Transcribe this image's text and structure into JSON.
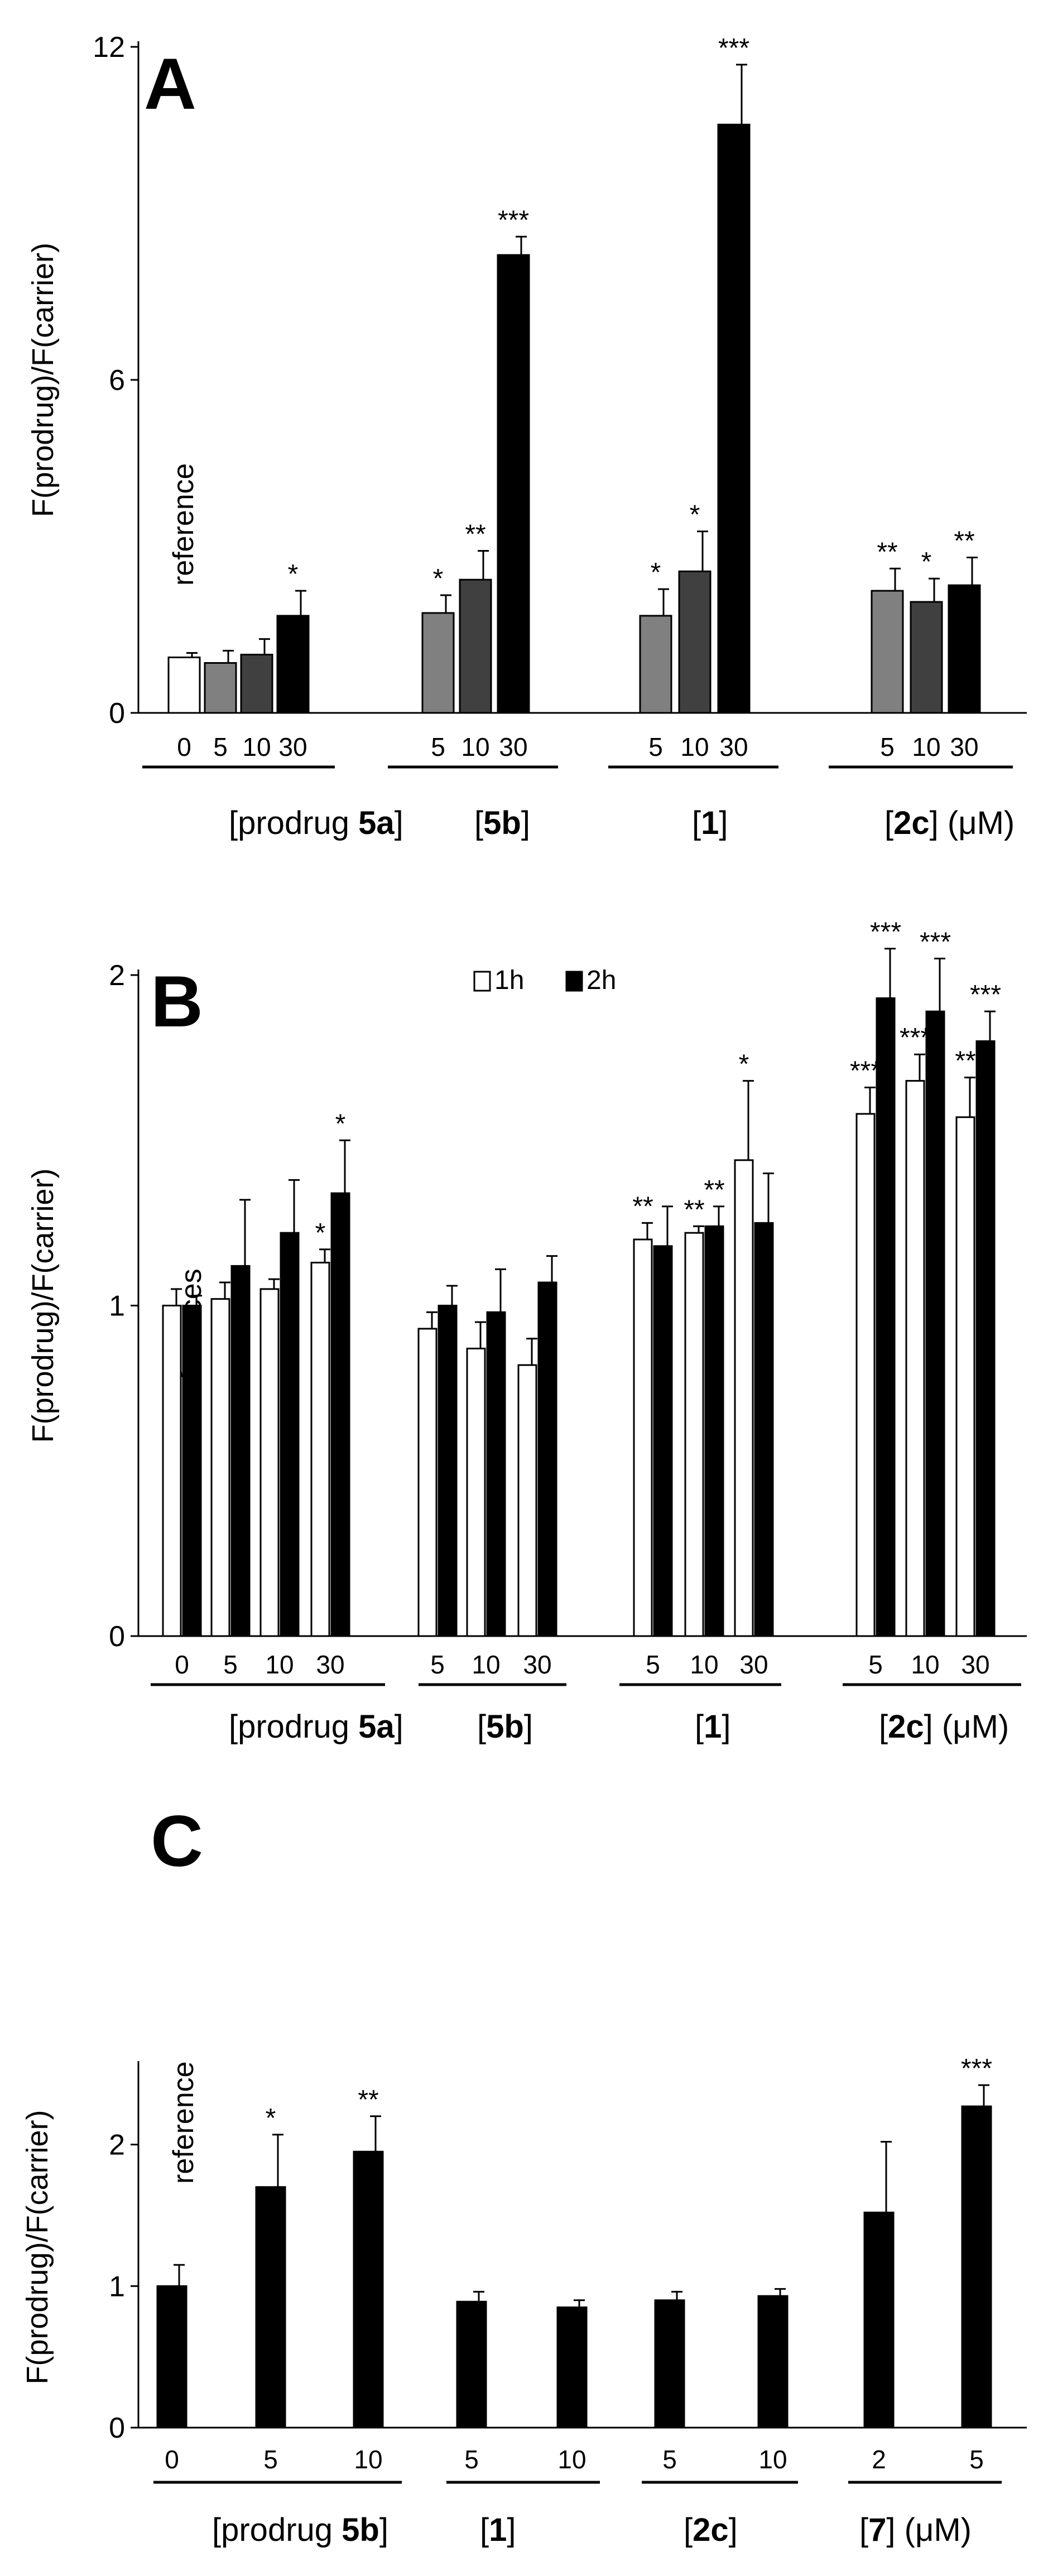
{
  "figure": {
    "charts": [
      {
        "panel_label": "A",
        "ylabel": "F(prodrug)/F(carrier)",
        "y_ticks": [
          "0",
          "6",
          "12"
        ],
        "ylim": [
          0,
          12
        ],
        "annotation": "reference",
        "groups": [
          {
            "label_pre": "[prodrug ",
            "label_bold": "5a",
            "label_post": "]",
            "unit": ""
          },
          {
            "label_pre": "[",
            "label_bold": "5b",
            "label_post": "]",
            "unit": ""
          },
          {
            "label_pre": "[",
            "label_bold": "1",
            "label_post": "]",
            "unit": ""
          },
          {
            "label_pre": "[",
            "label_bold": "2c",
            "label_post": "]",
            "unit": " (μM)"
          }
        ],
        "bars": [
          {
            "group": 0,
            "x_label": "0",
            "value": 1.0,
            "err": 0.08,
            "sig": "",
            "color": "#ffffff"
          },
          {
            "group": 0,
            "x_label": "5",
            "value": 0.9,
            "err": 0.22,
            "sig": "",
            "color": "#808080"
          },
          {
            "group": 0,
            "x_label": "10",
            "value": 1.05,
            "err": 0.28,
            "sig": "",
            "color": "#404040"
          },
          {
            "group": 0,
            "x_label": "30",
            "value": 1.75,
            "err": 0.45,
            "sig": "*",
            "color": "#000000"
          },
          {
            "group": 1,
            "x_label": "5",
            "value": 1.8,
            "err": 0.32,
            "sig": "*",
            "color": "#808080"
          },
          {
            "group": 1,
            "x_label": "10",
            "value": 2.4,
            "err": 0.52,
            "sig": "**",
            "color": "#404040"
          },
          {
            "group": 1,
            "x_label": "30",
            "value": 8.25,
            "err": 0.33,
            "sig": "***",
            "color": "#000000"
          },
          {
            "group": 2,
            "x_label": "5",
            "value": 1.75,
            "err": 0.48,
            "sig": "*",
            "color": "#808080"
          },
          {
            "group": 2,
            "x_label": "10",
            "value": 2.55,
            "err": 0.72,
            "sig": "*",
            "color": "#404040"
          },
          {
            "group": 2,
            "x_label": "30",
            "value": 10.6,
            "err": 1.08,
            "sig": "***",
            "color": "#000000"
          },
          {
            "group": 3,
            "x_label": "5",
            "value": 2.2,
            "err": 0.4,
            "sig": "**",
            "color": "#808080"
          },
          {
            "group": 3,
            "x_label": "10",
            "value": 2.0,
            "err": 0.42,
            "sig": "*",
            "color": "#404040"
          },
          {
            "group": 3,
            "x_label": "30",
            "value": 2.3,
            "err": 0.5,
            "sig": "**",
            "color": "#000000"
          }
        ]
      },
      {
        "panel_label": "B",
        "ylabel": "F(prodrug)/F(carrier)",
        "y_ticks": [
          "0",
          "1",
          "2"
        ],
        "ylim": [
          0,
          2
        ],
        "annotation": "references",
        "legend": [
          {
            "label": "1h",
            "color": "#ffffff"
          },
          {
            "label": "2h",
            "color": "#000000"
          }
        ],
        "groups": [
          {
            "label_pre": "[prodrug ",
            "label_bold": "5a",
            "label_post": "]",
            "unit": ""
          },
          {
            "label_pre": "[",
            "label_bold": "5b",
            "label_post": "]",
            "unit": ""
          },
          {
            "label_pre": "[",
            "label_bold": "1",
            "label_post": "]",
            "unit": ""
          },
          {
            "label_pre": "[",
            "label_bold": "2c",
            "label_post": "]",
            "unit": " (μM)"
          }
        ],
        "categories": [
          {
            "group": 0,
            "x_label": "0"
          },
          {
            "group": 0,
            "x_label": "5"
          },
          {
            "group": 0,
            "x_label": "10"
          },
          {
            "group": 0,
            "x_label": "30"
          },
          {
            "group": 1,
            "x_label": "5"
          },
          {
            "group": 1,
            "x_label": "10"
          },
          {
            "group": 1,
            "x_label": "30"
          },
          {
            "group": 2,
            "x_label": "5"
          },
          {
            "group": 2,
            "x_label": "10"
          },
          {
            "group": 2,
            "x_label": "30"
          },
          {
            "group": 3,
            "x_label": "5"
          },
          {
            "group": 3,
            "x_label": "10"
          },
          {
            "group": 3,
            "x_label": "30"
          }
        ],
        "series": [
          {
            "name": "1h",
            "color": "#ffffff",
            "values": [
              1.0,
              1.02,
              1.05,
              1.13,
              0.93,
              0.87,
              0.82,
              1.2,
              1.22,
              1.44,
              1.58,
              1.68,
              1.57
            ],
            "errs": [
              0.05,
              0.05,
              0.03,
              0.04,
              0.05,
              0.08,
              0.08,
              0.05,
              0.02,
              0.24,
              0.08,
              0.08,
              0.12
            ],
            "sig": [
              "",
              "",
              "",
              "*",
              "",
              "",
              "",
              "**",
              "**",
              "*",
              "***",
              "***",
              "**"
            ]
          },
          {
            "name": "2h",
            "color": "#000000",
            "values": [
              1.0,
              1.12,
              1.22,
              1.34,
              1.0,
              0.98,
              1.07,
              1.18,
              1.24,
              1.25,
              1.93,
              1.89,
              1.8
            ],
            "errs": [
              0.03,
              0.2,
              0.16,
              0.16,
              0.06,
              0.13,
              0.08,
              0.12,
              0.06,
              0.15,
              0.15,
              0.16,
              0.09
            ],
            "sig": [
              "",
              "",
              "",
              "*",
              "",
              "",
              "",
              "",
              "**",
              "",
              "***",
              "***",
              "***"
            ]
          }
        ]
      },
      {
        "panel_label": "C",
        "ylabel": "F(prodrug)/F(carrier)",
        "y_ticks": [
          "0",
          "1",
          "2"
        ],
        "ylim": [
          0,
          2.55
        ],
        "annotation": "reference",
        "groups": [
          {
            "label_pre": "[prodrug ",
            "label_bold": "5b",
            "label_post": "]",
            "unit": ""
          },
          {
            "label_pre": "[",
            "label_bold": "1",
            "label_post": "]",
            "unit": ""
          },
          {
            "label_pre": "[",
            "label_bold": "2c",
            "label_post": "]",
            "unit": ""
          },
          {
            "label_pre": "[",
            "label_bold": "7",
            "label_post": "]",
            "unit": " (μM)"
          }
        ],
        "bars": [
          {
            "group": 0,
            "x_label": "0",
            "value": 1.0,
            "err": 0.15,
            "sig": "",
            "color": "#000000"
          },
          {
            "group": 0,
            "x_label": "5",
            "value": 1.7,
            "err": 0.37,
            "sig": "*",
            "color": "#000000"
          },
          {
            "group": 0,
            "x_label": "10",
            "value": 1.95,
            "err": 0.25,
            "sig": "**",
            "color": "#000000"
          },
          {
            "group": 1,
            "x_label": "5",
            "value": 0.89,
            "err": 0.07,
            "sig": "",
            "color": "#000000"
          },
          {
            "group": 1,
            "x_label": "10",
            "value": 0.85,
            "err": 0.05,
            "sig": "",
            "color": "#000000"
          },
          {
            "group": 2,
            "x_label": "5",
            "value": 0.9,
            "err": 0.06,
            "sig": "",
            "color": "#000000"
          },
          {
            "group": 2,
            "x_label": "10",
            "value": 0.93,
            "err": 0.05,
            "sig": "",
            "color": "#000000"
          },
          {
            "group": 3,
            "x_label": "2",
            "value": 1.52,
            "err": 0.5,
            "sig": "",
            "color": "#000000"
          },
          {
            "group": 3,
            "x_label": "5",
            "value": 2.27,
            "err": 0.15,
            "sig": "***",
            "color": "#000000"
          }
        ]
      }
    ]
  },
  "chart_data": [
    {
      "type": "bar",
      "panel": "A",
      "title": "A",
      "xlabel": "[prodrug 5a] [5b] [1] [2c] (μM)",
      "ylabel": "F(prodrug)/F(carrier)",
      "ylim": [
        0,
        12
      ],
      "categories": [
        "5a 0",
        "5a 5",
        "5a 10",
        "5a 30",
        "5b 5",
        "5b 10",
        "5b 30",
        "1 5",
        "1 10",
        "1 30",
        "2c 5",
        "2c 10",
        "2c 30"
      ],
      "values": [
        1.0,
        0.9,
        1.05,
        1.75,
        1.8,
        2.4,
        8.25,
        1.75,
        2.55,
        10.6,
        2.2,
        2.0,
        2.3
      ],
      "errors": [
        0.08,
        0.22,
        0.28,
        0.45,
        0.32,
        0.52,
        0.33,
        0.48,
        0.72,
        1.08,
        0.4,
        0.42,
        0.5
      ],
      "significance": [
        "",
        "",
        "",
        "*",
        "*",
        "**",
        "***",
        "*",
        "*",
        "***",
        "**",
        "*",
        "**"
      ],
      "annotations": [
        "reference"
      ]
    },
    {
      "type": "bar",
      "panel": "B",
      "title": "B",
      "xlabel": "[prodrug 5a] [5b] [1] [2c] (μM)",
      "ylabel": "F(prodrug)/F(carrier)",
      "ylim": [
        0,
        2
      ],
      "legend": [
        "1h",
        "2h"
      ],
      "legend_position": "top-center",
      "categories": [
        "5a 0",
        "5a 5",
        "5a 10",
        "5a 30",
        "5b 5",
        "5b 10",
        "5b 30",
        "1 5",
        "1 10",
        "1 30",
        "2c 5",
        "2c 10",
        "2c 30"
      ],
      "series": [
        {
          "name": "1h",
          "values": [
            1.0,
            1.02,
            1.05,
            1.13,
            0.93,
            0.87,
            0.82,
            1.2,
            1.22,
            1.44,
            1.58,
            1.68,
            1.57
          ]
        },
        {
          "name": "2h",
          "values": [
            1.0,
            1.12,
            1.22,
            1.34,
            1.0,
            0.98,
            1.07,
            1.18,
            1.24,
            1.25,
            1.93,
            1.89,
            1.8
          ]
        }
      ],
      "annotations": [
        "references"
      ]
    },
    {
      "type": "bar",
      "panel": "C",
      "title": "C",
      "xlabel": "[prodrug 5b] [1] [2c] [7] (μM)",
      "ylabel": "F(prodrug)/F(carrier)",
      "ylim": [
        0,
        2.55
      ],
      "categories": [
        "5b 0",
        "5b 5",
        "5b 10",
        "1 5",
        "1 10",
        "2c 5",
        "2c 10",
        "7 2",
        "7 5"
      ],
      "values": [
        1.0,
        1.7,
        1.95,
        0.89,
        0.85,
        0.9,
        0.93,
        1.52,
        2.27
      ],
      "errors": [
        0.15,
        0.37,
        0.25,
        0.07,
        0.05,
        0.06,
        0.05,
        0.5,
        0.15
      ],
      "significance": [
        "",
        "*",
        "**",
        "",
        "",
        "",
        "",
        "",
        "***"
      ],
      "annotations": [
        "reference"
      ]
    }
  ]
}
